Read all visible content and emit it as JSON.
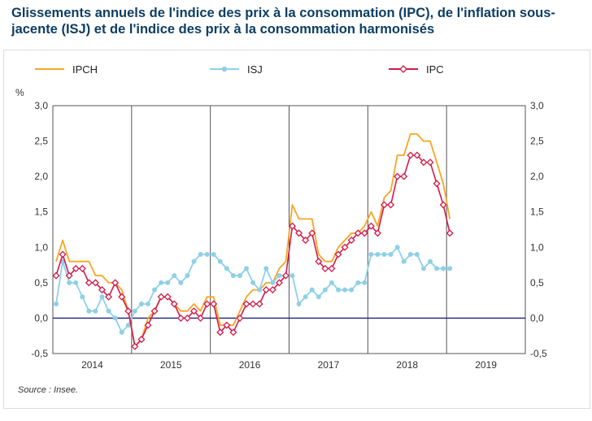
{
  "title": "Glissements annuels de l'indice des prix à la consommation (IPC), de l'inflation sous-jacente (ISJ) et de l'indice des prix à la consommation harmonisés",
  "source": "Source : Insee.",
  "colors": {
    "ipch": "#f5a623",
    "isj": "#8fd0e6",
    "ipc": "#d21a4b",
    "zero": "#1a237e"
  },
  "chart_data": {
    "type": "line",
    "title": "Glissements annuels de l'indice des prix à la consommation (IPC), de l'inflation sous-jacente (ISJ) et de l'indice des prix à la consommation harmonisés",
    "ylabel": "%",
    "ylim": [
      -0.5,
      3.0
    ],
    "yticks": [
      "3,0",
      "2,5",
      "2,0",
      "1,5",
      "1,0",
      "0,5",
      "0,0",
      "-0,5"
    ],
    "years": [
      "2014",
      "2015",
      "2016",
      "2017",
      "2018",
      "2019"
    ],
    "x_start": "2014-01",
    "x_end_label": "2018-12",
    "legend": [
      "IPCH",
      "ISJ",
      "IPC"
    ],
    "legend_position": "top",
    "grid": "vertical year separators",
    "series": [
      {
        "name": "IPCH",
        "values": [
          0.8,
          1.1,
          0.8,
          0.8,
          0.8,
          0.8,
          0.6,
          0.6,
          0.5,
          0.5,
          0.4,
          0.1,
          -0.4,
          -0.3,
          0.0,
          0.1,
          0.3,
          0.3,
          0.2,
          0.1,
          0.1,
          0.2,
          0.1,
          0.3,
          0.3,
          -0.1,
          -0.1,
          -0.1,
          0.1,
          0.3,
          0.4,
          0.4,
          0.5,
          0.5,
          0.7,
          0.8,
          1.6,
          1.4,
          1.4,
          1.4,
          0.9,
          0.8,
          0.8,
          1.0,
          1.1,
          1.2,
          1.2,
          1.3,
          1.5,
          1.3,
          1.7,
          1.8,
          2.3,
          2.3,
          2.6,
          2.6,
          2.5,
          2.5,
          2.2,
          1.9,
          1.4
        ]
      },
      {
        "name": "ISJ",
        "values": [
          0.2,
          0.8,
          0.5,
          0.5,
          0.3,
          0.1,
          0.1,
          0.3,
          0.1,
          0.0,
          -0.2,
          -0.1,
          0.1,
          0.2,
          0.2,
          0.4,
          0.5,
          0.5,
          0.6,
          0.5,
          0.6,
          0.8,
          0.9,
          0.9,
          0.9,
          0.8,
          0.7,
          0.6,
          0.6,
          0.7,
          0.5,
          0.4,
          0.7,
          0.5,
          0.6,
          0.6,
          0.6,
          0.2,
          0.3,
          0.4,
          0.3,
          0.4,
          0.5,
          0.4,
          0.4,
          0.4,
          0.5,
          0.5,
          0.9,
          0.9,
          0.9,
          0.9,
          1.0,
          0.8,
          0.9,
          0.9,
          0.7,
          0.8,
          0.7,
          0.7,
          0.7
        ]
      },
      {
        "name": "IPC",
        "values": [
          0.6,
          0.9,
          0.6,
          0.7,
          0.7,
          0.5,
          0.5,
          0.4,
          0.3,
          0.5,
          0.3,
          0.1,
          -0.4,
          -0.3,
          -0.1,
          0.1,
          0.3,
          0.3,
          0.2,
          0.0,
          0.0,
          0.1,
          0.0,
          0.2,
          0.2,
          -0.2,
          -0.1,
          -0.2,
          0.0,
          0.2,
          0.2,
          0.2,
          0.4,
          0.4,
          0.5,
          0.6,
          1.3,
          1.2,
          1.1,
          1.2,
          0.8,
          0.7,
          0.7,
          0.9,
          1.0,
          1.1,
          1.2,
          1.2,
          1.3,
          1.2,
          1.6,
          1.6,
          2.0,
          2.0,
          2.3,
          2.3,
          2.2,
          2.2,
          1.9,
          1.6,
          1.2
        ]
      }
    ]
  }
}
